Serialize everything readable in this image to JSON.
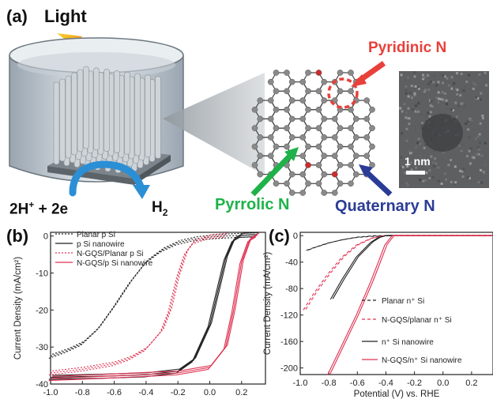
{
  "panels": {
    "a": {
      "label": "(a)",
      "light": "Light",
      "reaction_left": "2H",
      "reaction_left_sup": "+",
      "reaction_right": " + 2e",
      "product": "H",
      "product_sub": "2",
      "n_types": {
        "pyridinic": "Pyridinic N",
        "pyrrolic": "Pyrrolic N",
        "quaternary": "Quaternary N"
      },
      "scale_bar": "1 nm",
      "colors": {
        "pyridinic": "#e8403a",
        "pyrrolic": "#1fb24a",
        "quaternary": "#2b3c96",
        "arrow": "#2b8fd6"
      }
    },
    "b": {
      "label": "(b)"
    },
    "c": {
      "label": "(c)"
    }
  },
  "chart_data": [
    {
      "type": "line",
      "panel": "b",
      "ylabel": "Current Density (mA/cm²)",
      "xlabel": "",
      "xlim": [
        -1.0,
        0.35
      ],
      "ylim": [
        -40,
        1
      ],
      "xticks": [
        "-1.0",
        "-0.8",
        "-0.6",
        "-0.4",
        "-0.2",
        "0.0",
        "0.2"
      ],
      "yticks": [
        "0",
        "-10",
        "-20",
        "-30",
        "-40"
      ],
      "legend_position": "top-left",
      "series": [
        {
          "name": "Planar p Si",
          "style": "dotted",
          "color": "#222222",
          "x": [
            -1.0,
            -0.9,
            -0.8,
            -0.7,
            -0.6,
            -0.5,
            -0.4,
            -0.3,
            -0.2,
            -0.1,
            0.0,
            0.1,
            0.2,
            0.3
          ],
          "y": [
            -32.5,
            -31.0,
            -29.0,
            -25.0,
            -19.0,
            -12.5,
            -7.0,
            -3.8,
            -1.8,
            -0.8,
            -0.3,
            0.0,
            0.2,
            0.3
          ]
        },
        {
          "name": "p Si nanowire",
          "style": "solid",
          "color": "#222222",
          "x": [
            -1.0,
            -0.8,
            -0.6,
            -0.4,
            -0.2,
            -0.1,
            0.0,
            0.05,
            0.1,
            0.15,
            0.2,
            0.3
          ],
          "y": [
            -38.2,
            -38.0,
            -37.8,
            -37.5,
            -36.5,
            -33.5,
            -24.0,
            -15.0,
            -6.0,
            -1.0,
            0.2,
            0.4
          ]
        },
        {
          "name": "N-GQS/Planar p Si",
          "style": "dotted",
          "color": "#e03050",
          "x": [
            -1.0,
            -0.8,
            -0.6,
            -0.5,
            -0.4,
            -0.3,
            -0.25,
            -0.2,
            -0.15,
            -0.1,
            0.0,
            0.1
          ],
          "y": [
            -37.0,
            -36.0,
            -34.5,
            -33.0,
            -30.5,
            -25.5,
            -20.0,
            -11.0,
            -4.5,
            -1.6,
            -0.2,
            0.2
          ]
        },
        {
          "name": "N-GQS/p Si nanowire",
          "style": "solid",
          "color": "#e03050",
          "x": [
            -1.0,
            -0.6,
            -0.2,
            0.0,
            0.1,
            0.15,
            0.2,
            0.25,
            0.3
          ],
          "y": [
            -38.5,
            -37.8,
            -37.0,
            -35.5,
            -30.0,
            -20.0,
            -7.0,
            -1.0,
            0.3
          ]
        }
      ]
    },
    {
      "type": "line",
      "panel": "c",
      "ylabel": "Current Density (mA/cm²)",
      "xlabel": "Potential (V) vs. RHE",
      "xlim": [
        -1.0,
        0.35
      ],
      "ylim": [
        -210,
        5
      ],
      "xticks": [
        "-1.0",
        "-0.8",
        "-0.6",
        "-0.4",
        "-0.2",
        "0.0",
        "0.2"
      ],
      "yticks": [
        "0",
        "-40",
        "-80",
        "-120",
        "-160",
        "-200"
      ],
      "legend_position": "bottom-right",
      "series": [
        {
          "name": "Planar n⁺ Si",
          "style": "dashed",
          "color": "#222222",
          "x": [
            -0.95,
            -0.9,
            -0.8,
            -0.7,
            -0.6,
            -0.5,
            -0.4,
            -0.3,
            0.0,
            0.35
          ],
          "y": [
            -22,
            -18,
            -11,
            -6,
            -2.5,
            -0.8,
            0,
            0,
            0,
            0
          ]
        },
        {
          "name": "N-GQS/planar n⁺ Si",
          "style": "dashed",
          "color": "#e03050",
          "x": [
            -0.97,
            -0.9,
            -0.8,
            -0.7,
            -0.6,
            -0.5,
            -0.45,
            -0.4,
            0.0,
            0.35
          ],
          "y": [
            -112,
            -88,
            -58,
            -32,
            -14,
            -4,
            -1.5,
            0,
            0,
            0
          ]
        },
        {
          "name": "n⁺ Si nanowire",
          "style": "solid",
          "color": "#222222",
          "x": [
            -0.78,
            -0.7,
            -0.6,
            -0.5,
            -0.45,
            -0.4,
            0.0,
            0.35
          ],
          "y": [
            -96,
            -66,
            -32,
            -10,
            -3,
            0,
            0,
            0
          ]
        },
        {
          "name": "N-GQS/n⁺ Si nanowire",
          "style": "solid",
          "color": "#e03050",
          "x": [
            -0.8,
            -0.7,
            -0.6,
            -0.5,
            -0.45,
            -0.4,
            -0.35,
            0.0,
            0.35
          ],
          "y": [
            -210,
            -165,
            -120,
            -70,
            -42,
            -14,
            0,
            0,
            0
          ]
        }
      ]
    }
  ]
}
